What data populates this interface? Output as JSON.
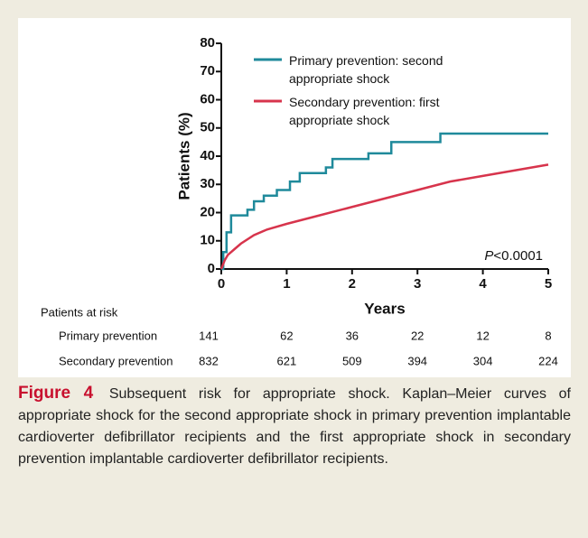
{
  "chart_data": {
    "type": "line",
    "step": false,
    "y_label": "Patients (%)",
    "x_label": "Years",
    "xlim": [
      0,
      5
    ],
    "xticks": [
      0,
      1,
      2,
      3,
      4,
      5
    ],
    "ylim": [
      0,
      80
    ],
    "yticks": [
      0,
      10,
      20,
      30,
      40,
      50,
      60,
      70,
      80
    ],
    "series": [
      {
        "name": "Primary prevention: second appropriate shock",
        "color": "#1f8a9b",
        "x": [
          0,
          0.03,
          0.03,
          0.08,
          0.08,
          0.15,
          0.15,
          0.4,
          0.4,
          0.5,
          0.5,
          0.65,
          0.65,
          0.85,
          0.85,
          1.05,
          1.05,
          1.2,
          1.2,
          1.6,
          1.6,
          1.7,
          1.7,
          2.25,
          2.25,
          2.6,
          2.6,
          3.35,
          3.35,
          5
        ],
        "values": [
          0,
          0,
          6,
          6,
          13,
          13,
          19,
          19,
          21,
          21,
          24,
          24,
          26,
          26,
          28,
          28,
          31,
          31,
          34,
          34,
          36,
          36,
          39,
          39,
          41,
          41,
          45,
          45,
          48,
          48
        ]
      },
      {
        "name": "Secondary prevention: first appropriate shock",
        "color": "#d7344c",
        "x": [
          0,
          0.05,
          0.1,
          0.2,
          0.3,
          0.5,
          0.7,
          1.0,
          1.5,
          2.0,
          2.5,
          3.0,
          3.5,
          4.0,
          4.5,
          5
        ],
        "values": [
          0,
          3,
          5,
          7,
          9,
          12,
          14,
          16,
          19,
          22,
          25,
          28,
          31,
          33,
          35,
          37
        ]
      }
    ],
    "annotation": {
      "p": "P",
      "text": "<0.0001"
    },
    "risk_table": {
      "title": "Patients at risk",
      "rows": [
        {
          "label": "Primary prevention",
          "values": [
            141,
            62,
            36,
            22,
            12,
            8
          ]
        },
        {
          "label": "Secondary prevention",
          "values": [
            832,
            621,
            509,
            394,
            304,
            224
          ]
        }
      ]
    }
  },
  "caption": {
    "label": "Figure 4",
    "text": "Subsequent risk for appropriate shock. Kaplan–Meier curves of appropriate shock for the second appropriate shock in primary prevention implantable cardioverter defibrillator recipients and the first appropriate shock in secondary prevention implantable cardioverter defibrillator recipients."
  }
}
